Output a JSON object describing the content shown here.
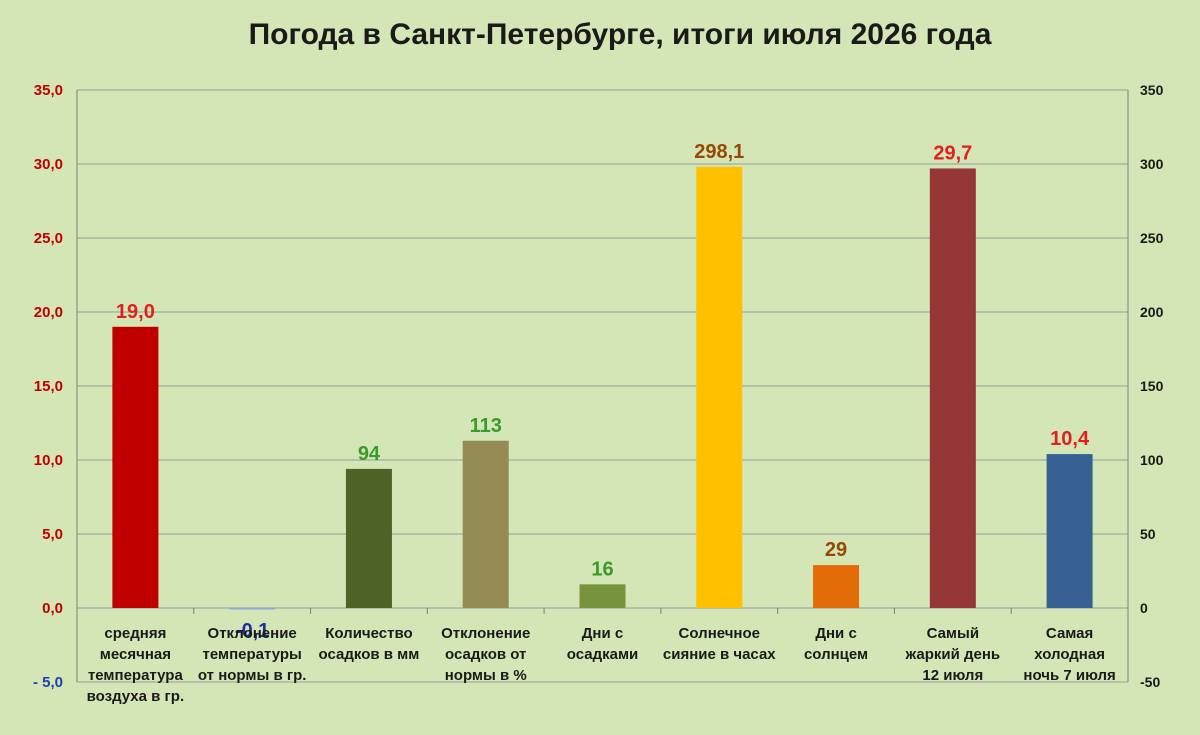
{
  "chart_data": {
    "type": "bar",
    "title": "Погода в Санкт-Петербурге, итоги июля 2026 года",
    "y_left": {
      "ylim": [
        -5,
        35
      ],
      "ticks": [
        "- 5,0",
        "0,0",
        "5,0",
        "10,0",
        "15,0",
        "20,0",
        "25,0",
        "30,0",
        "35,0"
      ],
      "tick_values": [
        -5,
        0,
        5,
        10,
        15,
        20,
        25,
        30,
        35
      ],
      "color": "#c00000",
      "negative_color": "#1f3fb0"
    },
    "y_right": {
      "ylim": [
        -50,
        350
      ],
      "ticks": [
        "-50",
        "0",
        "50",
        "100",
        "150",
        "200",
        "250",
        "300",
        "350"
      ],
      "tick_values": [
        -50,
        0,
        50,
        100,
        150,
        200,
        250,
        300,
        350
      ]
    },
    "grid": true,
    "categories": [
      [
        "средняя",
        "месячная",
        "температура",
        "воздуха в гр."
      ],
      [
        "Отклонение",
        "температуры",
        "от нормы в гр."
      ],
      [
        "Количество",
        "осадков в мм"
      ],
      [
        "Отклонение",
        "осадков от",
        "нормы в %"
      ],
      [
        "Дни с",
        "осадками"
      ],
      [
        "Солнечное",
        "сияние в часах"
      ],
      [
        "Дни с",
        "солнцем"
      ],
      [
        "Самый",
        "жаркий день",
        "12 июля"
      ],
      [
        "Самая",
        "холодная",
        "ночь 7 июля"
      ]
    ],
    "bars": [
      {
        "value": 19.0,
        "axis": "left",
        "label": "19,0",
        "color": "#c00000",
        "label_color": "#e02020"
      },
      {
        "value": -0.1,
        "axis": "left",
        "label": "-0,1",
        "color": "#8ea9db",
        "label_color": "#1f2fa0"
      },
      {
        "value": 94,
        "axis": "right",
        "label": "94",
        "color": "#4f6228",
        "label_color": "#3a9a2a"
      },
      {
        "value": 113,
        "axis": "right",
        "label": "113",
        "color": "#948a54",
        "label_color": "#3a9a2a"
      },
      {
        "value": 16,
        "axis": "right",
        "label": "16",
        "color": "#77933c",
        "label_color": "#3a9a2a"
      },
      {
        "value": 298.1,
        "axis": "right",
        "label": "298,1",
        "color": "#ffc000",
        "label_color": "#984807"
      },
      {
        "value": 29,
        "axis": "right",
        "label": "29",
        "color": "#e36c09",
        "label_color": "#984807"
      },
      {
        "value": 29.7,
        "axis": "left",
        "label": "29,7",
        "color": "#953735",
        "label_color": "#e02020"
      },
      {
        "value": 10.4,
        "axis": "left",
        "label": "10,4",
        "color": "#376092",
        "label_color": "#e02020"
      }
    ]
  }
}
